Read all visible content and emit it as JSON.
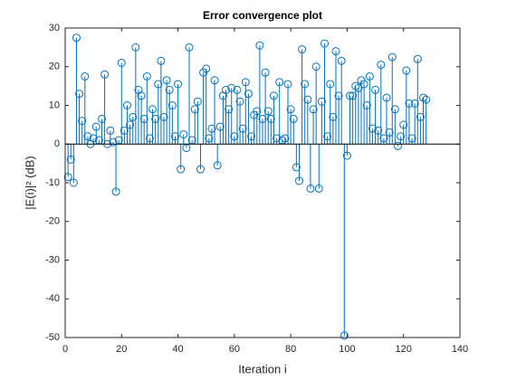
{
  "chart_data": {
    "type": "stem",
    "title": "Error convergence plot",
    "xlabel": "Iteration i",
    "ylabel": "|E(i)|² (dB)",
    "color": "#0072bd",
    "x": [
      1,
      2,
      3,
      4,
      5,
      6,
      7,
      8,
      9,
      10,
      11,
      12,
      13,
      14,
      15,
      16,
      17,
      18,
      19,
      20,
      21,
      22,
      23,
      24,
      25,
      26,
      27,
      28,
      29,
      30,
      31,
      32,
      33,
      34,
      35,
      36,
      37,
      38,
      39,
      40,
      41,
      42,
      43,
      44,
      45,
      46,
      47,
      48,
      49,
      50,
      51,
      52,
      53,
      54,
      55,
      56,
      57,
      58,
      59,
      60,
      61,
      62,
      63,
      64,
      65,
      66,
      67,
      68,
      69,
      70,
      71,
      72,
      73,
      74,
      75,
      76,
      77,
      78,
      79,
      80,
      81,
      82,
      83,
      84,
      85,
      86,
      87,
      88,
      89,
      90,
      91,
      92,
      93,
      94,
      95,
      96,
      97,
      98,
      99,
      100,
      101,
      102,
      103,
      104,
      105,
      106,
      107,
      108,
      109,
      110,
      111,
      112,
      113,
      114,
      115,
      116,
      117,
      118,
      119,
      120,
      121,
      122,
      123,
      124,
      125,
      126,
      127,
      128
    ],
    "values": [
      -8.5,
      -4,
      -10,
      27.5,
      13,
      6,
      17.5,
      2,
      0,
      1.5,
      4.5,
      1,
      6.5,
      18,
      0,
      3.5,
      0.5,
      -12.3,
      1,
      21,
      3.5,
      10,
      5,
      7,
      25,
      14,
      12.5,
      6.5,
      17.5,
      1.5,
      9,
      6.5,
      15.5,
      21.5,
      7,
      16.5,
      14,
      10,
      2,
      15.5,
      -6.5,
      2.5,
      -1,
      25,
      1,
      9,
      11,
      -6.5,
      18.5,
      19.5,
      1.5,
      4,
      16.5,
      -5.5,
      4.5,
      12.5,
      14,
      9,
      14.5,
      2,
      14,
      11,
      4,
      16,
      13,
      2,
      7.5,
      8.5,
      25.5,
      6.5,
      18.5,
      8.5,
      6.5,
      12.5,
      1.5,
      16,
      1,
      1.5,
      15.5,
      9,
      6.5,
      -6,
      -9.5,
      24.5,
      15.5,
      11.5,
      -11.5,
      9,
      20,
      -11.5,
      11,
      26,
      2,
      15.5,
      7,
      24,
      12.5,
      21.5,
      -49.5,
      -3,
      12.5,
      12.5,
      15,
      14.5,
      16.5,
      15.5,
      10,
      17.5,
      4,
      14,
      3.5,
      20.5,
      1.5,
      12,
      3,
      22.5,
      9,
      -0.5,
      2,
      5,
      19,
      10.5,
      1.5,
      10.5,
      22,
      7,
      12,
      11.5
    ],
    "xlim": [
      0,
      140
    ],
    "xticks": [
      0,
      20,
      40,
      60,
      80,
      100,
      120,
      140
    ],
    "ylim": [
      -50,
      30
    ],
    "yticks": [
      -50,
      -40,
      -30,
      -20,
      -10,
      0,
      10,
      20,
      30
    ]
  }
}
